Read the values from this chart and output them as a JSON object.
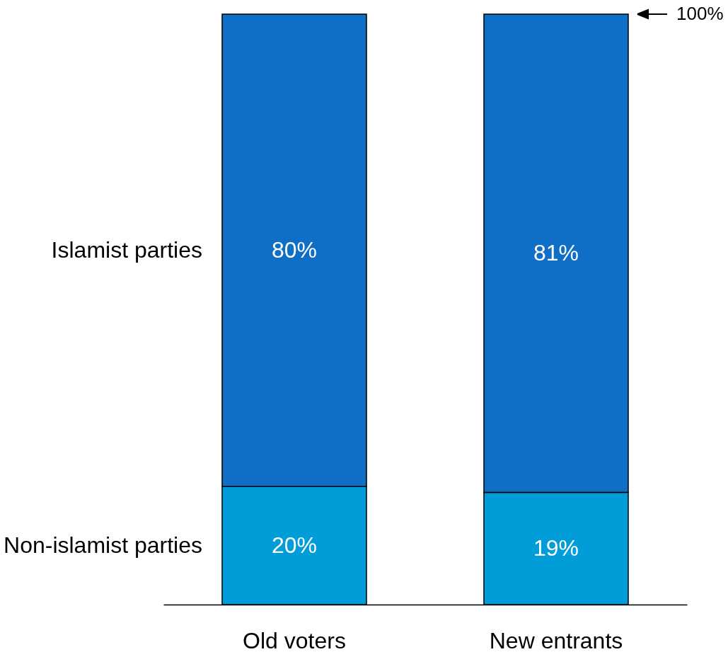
{
  "chart_data": {
    "type": "bar",
    "stacked": true,
    "categories": [
      "Old voters",
      "New entrants"
    ],
    "series": [
      {
        "name": "Non-islamist parties",
        "color": "#009dd9",
        "values": [
          20,
          19
        ],
        "value_labels": [
          "20%",
          "19%"
        ]
      },
      {
        "name": "Islamist parties",
        "color": "#0f6fc6",
        "values": [
          80,
          81
        ],
        "value_labels": [
          "80%",
          "81%"
        ]
      }
    ],
    "ylim": [
      0,
      100
    ],
    "legend": false,
    "grid": false,
    "tick_labels": "x",
    "annotations": [
      "100%"
    ]
  }
}
